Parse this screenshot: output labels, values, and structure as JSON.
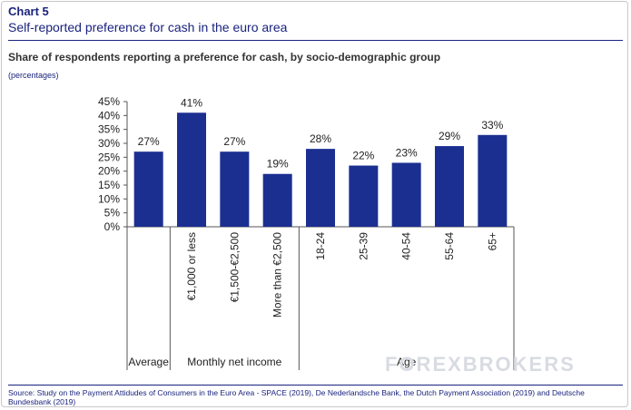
{
  "header": {
    "chart_number": "Chart 5",
    "title": "Self-reported preference for cash in the euro area",
    "subtitle": "Share of respondents reporting a preference for cash, by socio-demographic group",
    "unit": "(percentages)"
  },
  "chart_data": {
    "type": "bar",
    "categories": [
      "",
      "€1,000 or less",
      "€1,500-€2,500",
      "More than €2,500",
      "18-24",
      "25-39",
      "40-54",
      "55-64",
      "65+"
    ],
    "values": [
      27,
      41,
      27,
      19,
      28,
      22,
      23,
      29,
      33
    ],
    "data_labels": [
      "27%",
      "41%",
      "27%",
      "19%",
      "28%",
      "22%",
      "23%",
      "29%",
      "33%"
    ],
    "group_labels": [
      {
        "label": "Average",
        "from": 0,
        "to": 0
      },
      {
        "label": "Monthly net income",
        "from": 1,
        "to": 3
      },
      {
        "label": "Age",
        "from": 4,
        "to": 8
      }
    ],
    "y_ticks": [
      "0%",
      "5%",
      "10%",
      "15%",
      "20%",
      "25%",
      "30%",
      "35%",
      "40%",
      "45%"
    ],
    "ylim": [
      0,
      45
    ],
    "grid": false,
    "bar_color": "#1b2f91"
  },
  "watermark": "FOREXBROKERS",
  "source": "Source: Study on the Payment Attidudes of Consumers in the Euro Area - SPACE (2019), De Nederlandsche Bank, the Dutch Payment Association (2019) and Deutsche Bundesbank (2019)"
}
